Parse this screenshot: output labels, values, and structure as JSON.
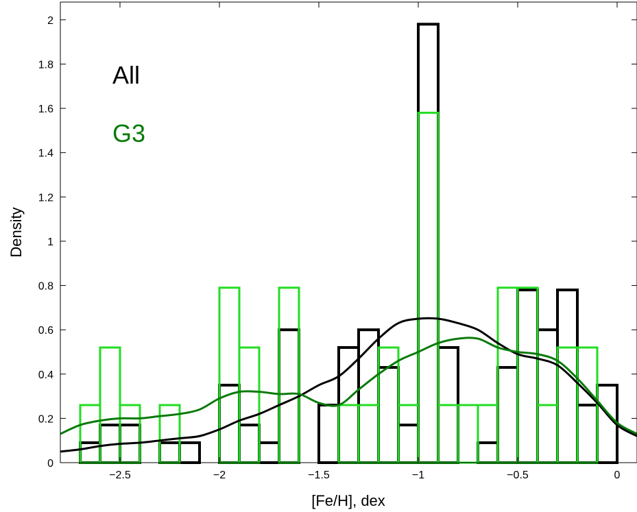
{
  "chart_data": {
    "type": "histogram",
    "xlabel": "[Fe/H], dex",
    "ylabel": "Density",
    "xlim": [
      -2.8,
      0.1
    ],
    "ylim": [
      0,
      2.08
    ],
    "x_ticks": [
      -2.5,
      -2,
      -1.5,
      -1,
      -0.5,
      0
    ],
    "x_tick_labels": [
      "−2.5",
      "−2",
      "−1.5",
      "−1",
      "−0.5",
      "0"
    ],
    "y_ticks": [
      0,
      0.2,
      0.4,
      0.6,
      0.8,
      1,
      1.2,
      1.4,
      1.6,
      1.8,
      2
    ],
    "y_tick_labels": [
      "0",
      "0.2",
      "0.4",
      "0.6",
      "0.8",
      "1",
      "1.2",
      "1.4",
      "1.6",
      "1.8",
      "2"
    ],
    "grid": false,
    "legend": [
      {
        "label": "All",
        "color": "#000000"
      },
      {
        "label": "G3",
        "color": "#0a7a0a"
      }
    ],
    "bin_edges": [
      -2.7,
      -2.6,
      -2.5,
      -2.4,
      -2.3,
      -2.2,
      -2.1,
      -2.0,
      -1.9,
      -1.8,
      -1.7,
      -1.6,
      -1.5,
      -1.4,
      -1.3,
      -1.2,
      -1.1,
      -1.0,
      -0.9,
      -0.8,
      -0.7,
      -0.6,
      -0.5,
      -0.4,
      -0.3,
      -0.2,
      -0.1,
      0.0,
      0.1
    ],
    "series": [
      {
        "name": "All",
        "kind": "histogram",
        "color": "#000000",
        "values": [
          0.09,
          0.17,
          0.17,
          0.0,
          0.09,
          0.09,
          0.0,
          0.35,
          0.17,
          0.09,
          0.6,
          0.0,
          0.26,
          0.52,
          0.6,
          0.43,
          0.17,
          1.98,
          0.52,
          0.0,
          0.09,
          0.43,
          0.78,
          0.6,
          0.78,
          0.26,
          0.35,
          0.0,
          0.09
        ]
      },
      {
        "name": "G3",
        "kind": "histogram",
        "color": "#22dd22",
        "values": [
          0.26,
          0.52,
          0.26,
          0.0,
          0.26,
          0.0,
          0.0,
          0.79,
          0.52,
          0.0,
          0.79,
          0.0,
          0.0,
          0.26,
          0.26,
          0.52,
          0.26,
          1.58,
          0.26,
          0.26,
          0.26,
          0.79,
          0.79,
          0.26,
          0.52,
          0.52,
          0.0,
          0.0,
          0.0
        ]
      },
      {
        "name": "All",
        "kind": "density",
        "color": "#000000",
        "x": [
          -2.8,
          -2.7,
          -2.6,
          -2.5,
          -2.4,
          -2.3,
          -2.2,
          -2.1,
          -2.0,
          -1.9,
          -1.8,
          -1.7,
          -1.6,
          -1.5,
          -1.4,
          -1.3,
          -1.2,
          -1.1,
          -1.0,
          -0.9,
          -0.8,
          -0.7,
          -0.6,
          -0.5,
          -0.4,
          -0.3,
          -0.2,
          -0.1,
          0.0,
          0.1
        ],
        "y": [
          0.05,
          0.06,
          0.075,
          0.085,
          0.09,
          0.1,
          0.11,
          0.12,
          0.15,
          0.19,
          0.22,
          0.26,
          0.3,
          0.35,
          0.39,
          0.47,
          0.56,
          0.63,
          0.65,
          0.65,
          0.63,
          0.6,
          0.54,
          0.49,
          0.47,
          0.44,
          0.36,
          0.27,
          0.17,
          0.12
        ]
      },
      {
        "name": "G3",
        "kind": "density",
        "color": "#0a7a0a",
        "x": [
          -2.8,
          -2.7,
          -2.6,
          -2.5,
          -2.4,
          -2.3,
          -2.2,
          -2.1,
          -2.0,
          -1.9,
          -1.8,
          -1.7,
          -1.6,
          -1.5,
          -1.4,
          -1.3,
          -1.2,
          -1.1,
          -1.0,
          -0.9,
          -0.8,
          -0.7,
          -0.6,
          -0.5,
          -0.4,
          -0.3,
          -0.2,
          -0.1,
          0.0,
          0.1
        ],
        "y": [
          0.13,
          0.17,
          0.19,
          0.2,
          0.2,
          0.21,
          0.22,
          0.24,
          0.29,
          0.32,
          0.32,
          0.31,
          0.31,
          0.27,
          0.26,
          0.33,
          0.4,
          0.46,
          0.5,
          0.54,
          0.56,
          0.56,
          0.52,
          0.5,
          0.49,
          0.46,
          0.38,
          0.28,
          0.18,
          0.13
        ]
      }
    ]
  }
}
